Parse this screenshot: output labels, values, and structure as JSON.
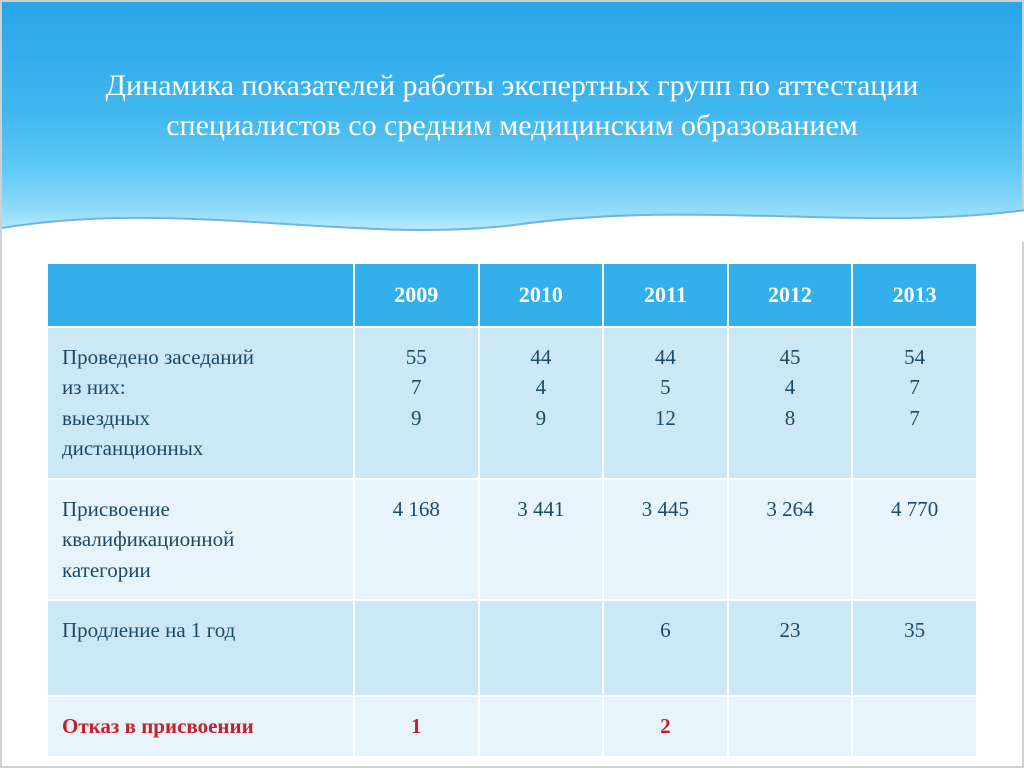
{
  "slide": {
    "title": "Динамика показателей работы экспертных групп по аттестации специалистов со средним медицинским образованием"
  },
  "colors": {
    "header_gradient_top": "#29a6e8",
    "header_gradient_bottom": "#d0eefd",
    "table_header_bg": "#33b0ec",
    "table_header_text": "#ffffff",
    "row_dark": "#cce8f6",
    "row_light": "#e8f4fb",
    "cell_text": "#1c4a66",
    "refuse_text": "#c8202a",
    "slide_bg": "#ffffff"
  },
  "table": {
    "type": "table",
    "years": [
      "2009",
      "2010",
      "2011",
      "2012",
      "2013"
    ],
    "rows": [
      {
        "key": "meetings",
        "label": "Проведено заседаний\nиз них:\nвыездных\nдистанционных",
        "values": [
          "55\n7\n9",
          "44\n4\n9",
          "44\n5\n12",
          "45\n4\n8",
          "54\n7\n7"
        ],
        "band": "a",
        "highlight": false
      },
      {
        "key": "assignment",
        "label": "Присвоение квалификационной\nкатегории",
        "values": [
          "4 168",
          "3 441",
          "3 445",
          "3 264",
          "4 770"
        ],
        "band": "b",
        "highlight": false
      },
      {
        "key": "extension",
        "label": "Продление на 1 год",
        "values": [
          "",
          "",
          "6",
          "23",
          "35"
        ],
        "band": "a",
        "highlight": false
      },
      {
        "key": "refusal",
        "label": "Отказ в присвоении",
        "values": [
          "1",
          "",
          "2",
          "",
          ""
        ],
        "band": "b",
        "highlight": true
      }
    ],
    "column_widths_pct": [
      33,
      13.4,
      13.4,
      13.4,
      13.4,
      13.4
    ],
    "header_fontsize_pt": 17,
    "cell_fontsize_pt": 16,
    "title_fontsize_pt": 23
  }
}
